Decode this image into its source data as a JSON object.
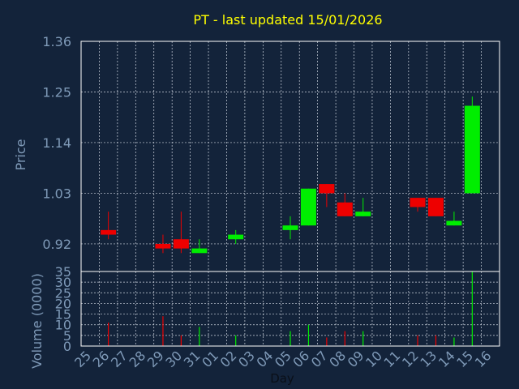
{
  "title": "PT - last updated 15/01/2026",
  "colors": {
    "background": "#13233a",
    "plot_border": "#ffffff",
    "grid": "#cfd6e0",
    "axis_text": "#7f9ab8",
    "title": "#ffff00",
    "up": "#00ee00",
    "down": "#ee0000",
    "day_label": "#0a0f18"
  },
  "chart_data": [
    {
      "type": "candlestick",
      "ylabel": "Price",
      "ylim": [
        0.86,
        1.36
      ],
      "yticks": [
        "0.92",
        "1.03",
        "1.14",
        "1.25",
        "1.36"
      ],
      "grid": true,
      "candles": [
        {
          "day": "26",
          "open": 0.95,
          "high": 0.99,
          "low": 0.93,
          "close": 0.94
        },
        {
          "day": "29",
          "open": 0.92,
          "high": 0.94,
          "low": 0.9,
          "close": 0.91
        },
        {
          "day": "30",
          "open": 0.93,
          "high": 0.99,
          "low": 0.9,
          "close": 0.91
        },
        {
          "day": "31",
          "open": 0.9,
          "high": 0.93,
          "low": 0.9,
          "close": 0.91
        },
        {
          "day": "02",
          "open": 0.93,
          "high": 0.95,
          "low": 0.92,
          "close": 0.94
        },
        {
          "day": "05",
          "open": 0.95,
          "high": 0.98,
          "low": 0.93,
          "close": 0.96
        },
        {
          "day": "06",
          "open": 0.96,
          "high": 1.04,
          "low": 0.96,
          "close": 1.04
        },
        {
          "day": "07",
          "open": 1.05,
          "high": 1.05,
          "low": 1.0,
          "close": 1.03
        },
        {
          "day": "08",
          "open": 1.01,
          "high": 1.03,
          "low": 0.98,
          "close": 0.98
        },
        {
          "day": "09",
          "open": 0.98,
          "high": 1.02,
          "low": 0.98,
          "close": 0.99
        },
        {
          "day": "12",
          "open": 1.02,
          "high": 1.02,
          "low": 0.99,
          "close": 1.0
        },
        {
          "day": "13",
          "open": 1.02,
          "high": 1.02,
          "low": 0.98,
          "close": 0.98
        },
        {
          "day": "14",
          "open": 0.96,
          "high": 0.99,
          "low": 0.96,
          "close": 0.97
        },
        {
          "day": "15",
          "open": 1.03,
          "high": 1.24,
          "low": 1.03,
          "close": 1.22
        }
      ]
    },
    {
      "type": "bar",
      "ylabel": "Volume (0000)",
      "xlabel": "Day",
      "ylim": [
        0,
        35
      ],
      "yticks": [
        "0",
        "5",
        "10",
        "15",
        "20",
        "25",
        "30",
        "35"
      ],
      "grid": true,
      "categories": [
        "25",
        "26",
        "27",
        "28",
        "29",
        "30",
        "31",
        "01",
        "02",
        "03",
        "04",
        "05",
        "06",
        "07",
        "08",
        "09",
        "10",
        "11",
        "12",
        "13",
        "14",
        "15",
        "16"
      ],
      "volumes": [
        {
          "day": "26",
          "value": 11,
          "direction": "down"
        },
        {
          "day": "29",
          "value": 14,
          "direction": "down"
        },
        {
          "day": "30",
          "value": 5,
          "direction": "down"
        },
        {
          "day": "31",
          "value": 9,
          "direction": "up"
        },
        {
          "day": "02",
          "value": 5,
          "direction": "up"
        },
        {
          "day": "05",
          "value": 7,
          "direction": "up"
        },
        {
          "day": "06",
          "value": 10,
          "direction": "up"
        },
        {
          "day": "07",
          "value": 4,
          "direction": "down"
        },
        {
          "day": "08",
          "value": 7,
          "direction": "down"
        },
        {
          "day": "09",
          "value": 7,
          "direction": "up"
        },
        {
          "day": "12",
          "value": 5,
          "direction": "down"
        },
        {
          "day": "13",
          "value": 5,
          "direction": "down"
        },
        {
          "day": "14",
          "value": 4,
          "direction": "up"
        },
        {
          "day": "15",
          "value": 35,
          "direction": "up"
        }
      ]
    }
  ]
}
